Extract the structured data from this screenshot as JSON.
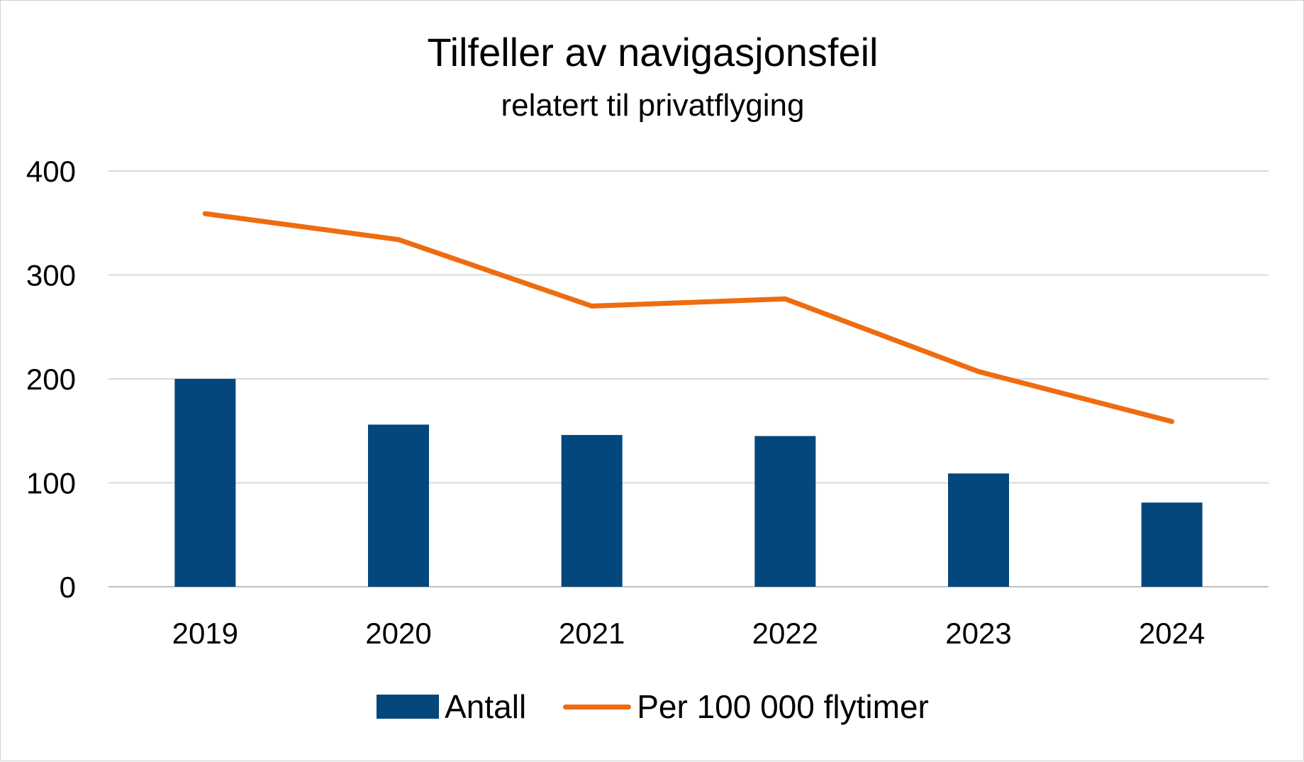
{
  "chart_data": {
    "type": "bar",
    "title": "Tilfeller av navigasjonsfeil",
    "subtitle": "relatert til privatflyging",
    "categories": [
      "2019",
      "2020",
      "2021",
      "2022",
      "2023",
      "2024"
    ],
    "series": [
      {
        "name": "Antall",
        "kind": "bar",
        "color": "#03477d",
        "values": [
          200,
          156,
          146,
          145,
          109,
          81
        ]
      },
      {
        "name": "Per 100 000 flytimer",
        "kind": "line",
        "color": "#ee6c10",
        "values": [
          359,
          334,
          270,
          277,
          207,
          159
        ]
      }
    ],
    "yticks": [
      "0",
      "100",
      "200",
      "300",
      "400"
    ],
    "ylim": [
      0,
      400
    ],
    "grid": true,
    "legend_position": "bottom"
  }
}
